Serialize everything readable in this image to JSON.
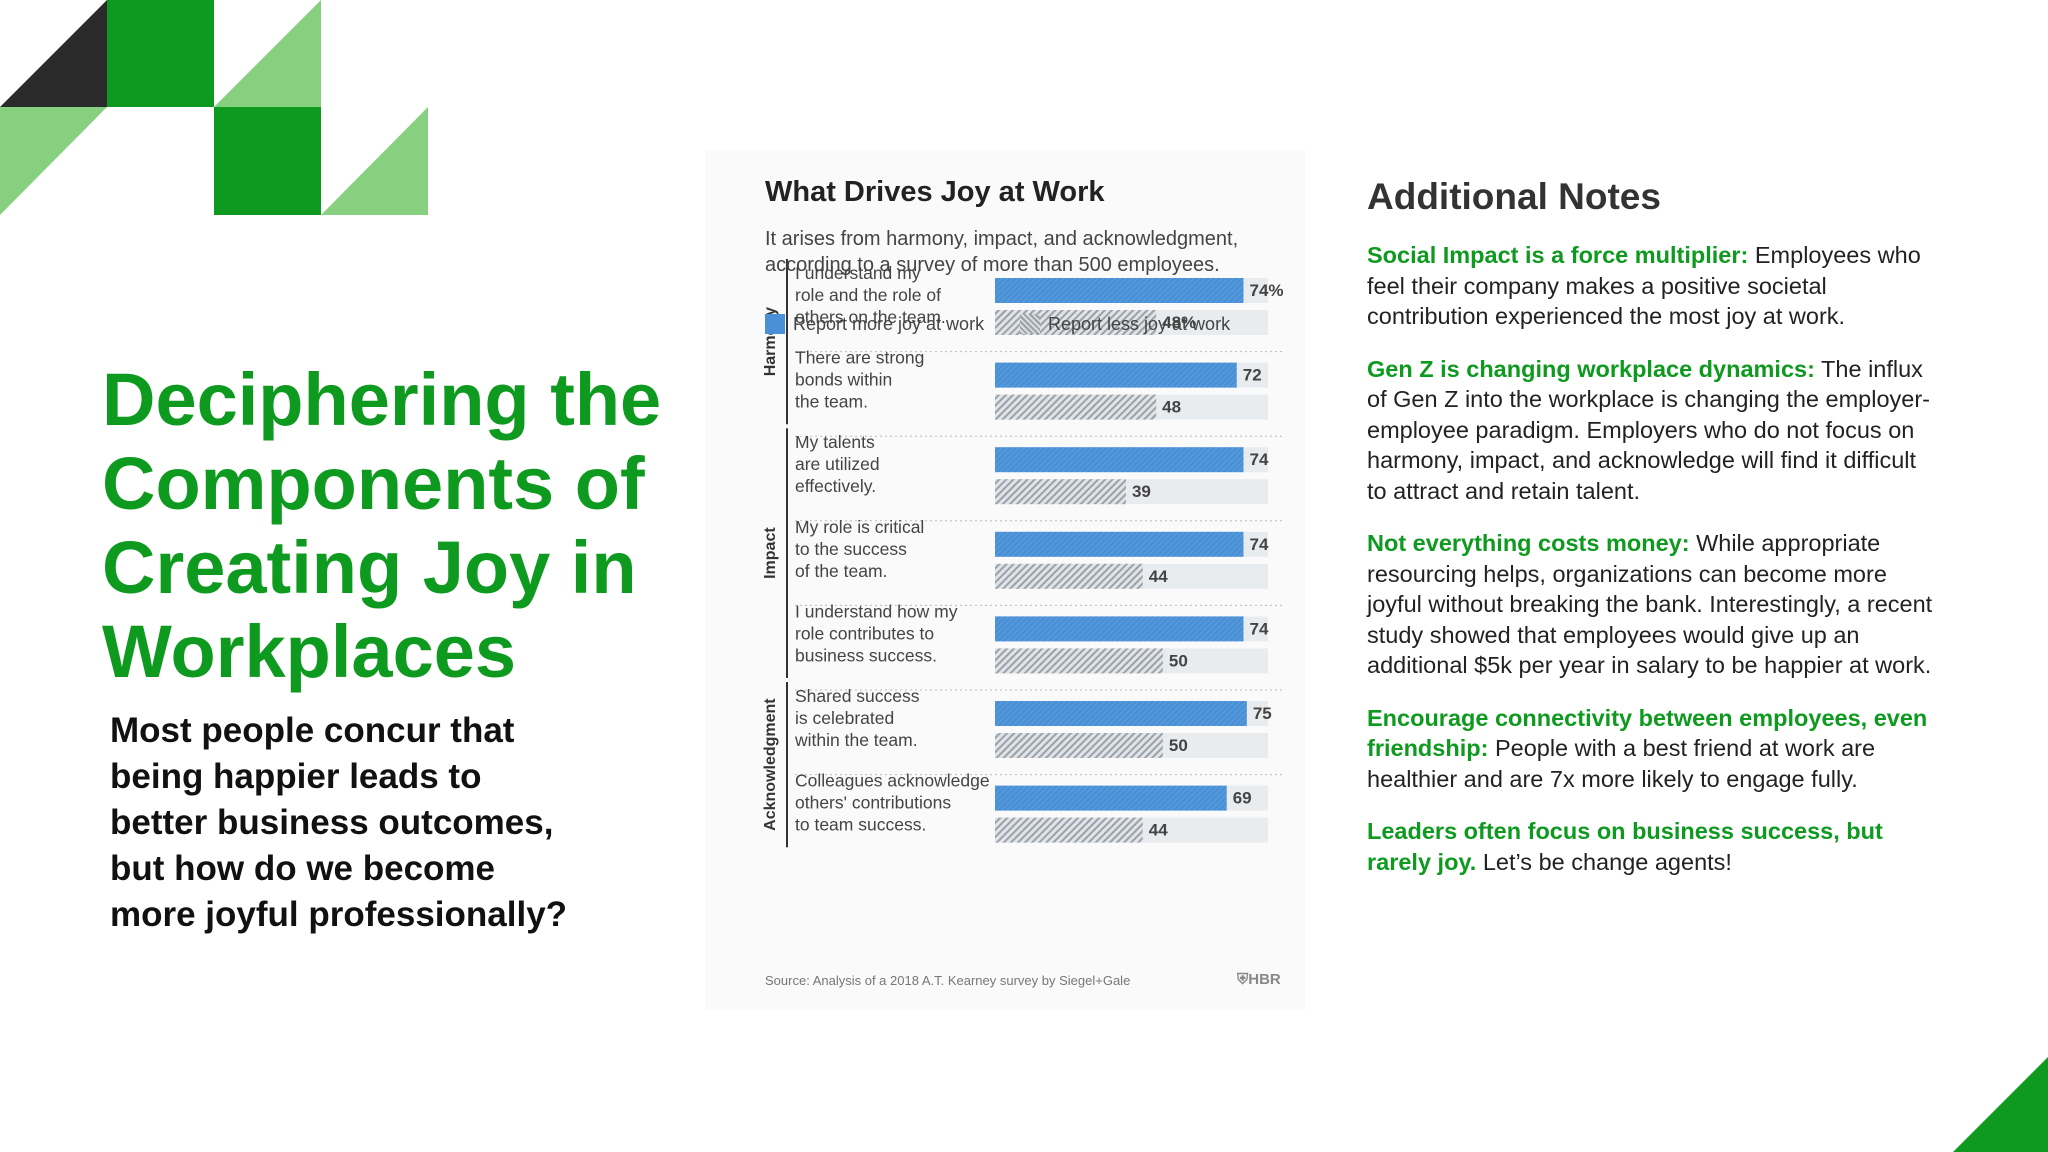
{
  "slide": {
    "title": "Deciphering the Components of Creating Joy in Workplaces",
    "subtitle": "Most people concur that being happier leads to better business outcomes, but how do we become more joyful professionally?",
    "accent_color": "#0e9a1f",
    "light_accent_color": "#86d07f",
    "dark_color": "#2b2b2b"
  },
  "chart": {
    "title": "What Drives Joy at Work",
    "subtitle": "It arises from harmony, impact, and acknowledgment, according to a survey of more than 500 employees.",
    "legend_more": "Report more joy at work",
    "legend_less": "Report less joy at work",
    "source": "Source: Analysis of a 2018 A.T. Kearney survey by Siegel+Gale",
    "brand": "HBR"
  },
  "chart_data": {
    "type": "bar",
    "orientation": "horizontal",
    "categories": [
      [
        "I understand my",
        "role and the role of",
        "others on the team."
      ],
      [
        "There are strong",
        "bonds within",
        "the team."
      ],
      [
        "My talents",
        "are utilized",
        "effectively."
      ],
      [
        "My role is critical",
        "to the success",
        "of the team."
      ],
      [
        "I understand how my",
        "role contributes to",
        "business success."
      ],
      [
        "Shared success",
        "is celebrated",
        "within the team."
      ],
      [
        "Colleagues acknowledge",
        "others' contributions",
        "to team success."
      ]
    ],
    "groups": [
      {
        "name": "Harmony",
        "from": 0,
        "to": 1
      },
      {
        "name": "Impact",
        "from": 2,
        "to": 4
      },
      {
        "name": "Acknowledgment",
        "from": 5,
        "to": 6
      }
    ],
    "series": [
      {
        "name": "Report more joy at work",
        "values": [
          74,
          72,
          74,
          74,
          74,
          75,
          69
        ],
        "labels": [
          "74%",
          "72",
          "74",
          "74",
          "74",
          "75",
          "69"
        ],
        "color": "#4a90d6",
        "pattern": "solid"
      },
      {
        "name": "Report less joy at work",
        "values": [
          48,
          48,
          39,
          44,
          50,
          50,
          44
        ],
        "labels": [
          "48%",
          "48",
          "39",
          "44",
          "50",
          "50",
          "44"
        ],
        "color": "#9aa1a8",
        "pattern": "hatched"
      }
    ],
    "xlim": [
      0,
      100
    ],
    "grid": false,
    "legend": "top-left"
  },
  "notes": {
    "heading": "Additional Notes",
    "items": [
      {
        "lead": "Social Impact is a force multiplier:",
        "text": " Employees who feel their company makes a positive societal contribution experienced the most joy at work."
      },
      {
        "lead": "Gen Z is changing workplace dynamics:",
        "text": " The influx of Gen Z into the workplace is changing the employer-employee paradigm. Employers who do not focus on harmony, impact, and acknowledge will find it difficult to attract and retain talent."
      },
      {
        "lead": "Not everything costs money:",
        "text": " While appropriate resourcing helps, organizations can become more joyful without breaking the bank. Interestingly, a recent study showed that employees would give up an additional $5k per year in salary to be happier at work."
      },
      {
        "lead": "Encourage connectivity between employees, even friendship:",
        "text": " People with a best friend at work are healthier and are 7x more likely to engage fully."
      },
      {
        "lead": "Leaders often focus on business success, but rarely joy.",
        "text": " Let’s be change agents!"
      }
    ]
  }
}
